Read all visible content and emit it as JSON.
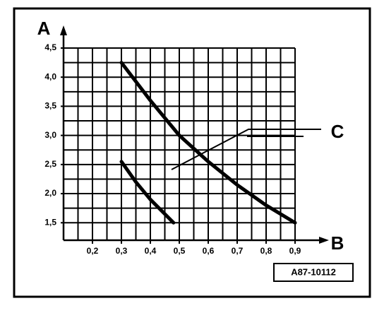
{
  "chart_data": {
    "type": "line",
    "y_label": "A",
    "x_label": "B",
    "annotation": "C",
    "reference": "A87-10112",
    "color": "#000000",
    "xlim": [
      0.1,
      0.9
    ],
    "ylim": [
      1.2,
      4.5
    ],
    "xticks": [
      {
        "value": 0.2,
        "label": "0,2"
      },
      {
        "value": 0.3,
        "label": "0,3"
      },
      {
        "value": 0.4,
        "label": "0,4"
      },
      {
        "value": 0.5,
        "label": "0,5"
      },
      {
        "value": 0.6,
        "label": "0,6"
      },
      {
        "value": 0.7,
        "label": "0,7"
      },
      {
        "value": 0.8,
        "label": "0,8"
      },
      {
        "value": 0.9,
        "label": "0,9"
      }
    ],
    "yticks": [
      {
        "value": 1.5,
        "label": "1,5"
      },
      {
        "value": 2.0,
        "label": "2,0"
      },
      {
        "value": 2.5,
        "label": "2,5"
      },
      {
        "value": 3.0,
        "label": "3,0"
      },
      {
        "value": 3.5,
        "label": "3,5"
      },
      {
        "value": 4.0,
        "label": "4,0"
      },
      {
        "value": 4.5,
        "label": "4,5"
      }
    ],
    "xgrid": [
      0.15,
      0.2,
      0.25,
      0.3,
      0.35,
      0.4,
      0.45,
      0.5,
      0.55,
      0.6,
      0.65,
      0.7,
      0.75,
      0.8,
      0.85,
      0.9
    ],
    "ygrid": [
      1.5,
      1.75,
      2.0,
      2.25,
      2.5,
      2.75,
      3.0,
      3.25,
      3.5,
      3.75,
      4.0,
      4.25,
      4.5
    ],
    "series": [
      {
        "x": [
          0.3,
          0.4,
          0.5,
          0.6,
          0.7,
          0.8,
          0.9
        ],
        "values": [
          4.25,
          3.6,
          3.0,
          2.55,
          2.15,
          1.8,
          1.5
        ]
      },
      {
        "x": [
          0.3,
          0.35,
          0.4,
          0.45,
          0.48
        ],
        "values": [
          2.55,
          2.2,
          1.9,
          1.65,
          1.5
        ]
      }
    ]
  }
}
